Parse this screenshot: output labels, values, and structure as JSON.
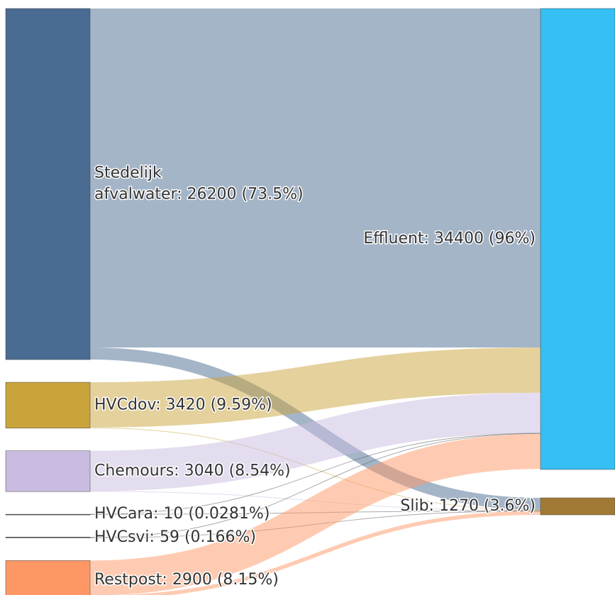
{
  "chart_data": {
    "type": "sankey",
    "nodes": [
      {
        "label": [
          "Stedelijk",
          "afvalwater: 26200 (73.5%)"
        ],
        "value": 26200,
        "color": "#4a6b92",
        "column": 0
      },
      {
        "label": [
          "HVCdov: 3420 (9.59%)"
        ],
        "value": 3420,
        "color": "#c9a43a",
        "column": 0
      },
      {
        "label": [
          "Chemours: 3040 (8.54%)"
        ],
        "value": 3040,
        "color": "#c9bce0",
        "column": 0
      },
      {
        "label": [
          "HVCara: 10 (0.0281%)"
        ],
        "value": 10,
        "color": "#555555",
        "column": 0
      },
      {
        "label": [
          "HVCsvi: 59 (0.166%)"
        ],
        "value": 59,
        "color": "#555555",
        "column": 0
      },
      {
        "label": [
          "Restpost: 2900 (8.15%)"
        ],
        "value": 2900,
        "color": "#fd9866",
        "column": 0
      },
      {
        "label": [
          "Effluent: 34400 (96%)"
        ],
        "value": 34400,
        "color": "#35bff2",
        "column": 1
      },
      {
        "label": [
          "Slib: 1270 (3.6%)"
        ],
        "value": 1270,
        "color": "#a07a35",
        "column": 1
      }
    ],
    "links": [
      {
        "source": 0,
        "target": 6,
        "value": 25300
      },
      {
        "source": 0,
        "target": 7,
        "value": 900
      },
      {
        "source": 1,
        "target": 6,
        "value": 3370
      },
      {
        "source": 1,
        "target": 7,
        "value": 50
      },
      {
        "source": 2,
        "target": 6,
        "value": 3020
      },
      {
        "source": 2,
        "target": 7,
        "value": 20
      },
      {
        "source": 3,
        "target": 6,
        "value": 8
      },
      {
        "source": 3,
        "target": 7,
        "value": 2
      },
      {
        "source": 4,
        "target": 6,
        "value": 50
      },
      {
        "source": 4,
        "target": 7,
        "value": 9
      },
      {
        "source": 5,
        "target": 6,
        "value": 2610
      },
      {
        "source": 5,
        "target": 7,
        "value": 290
      }
    ]
  }
}
